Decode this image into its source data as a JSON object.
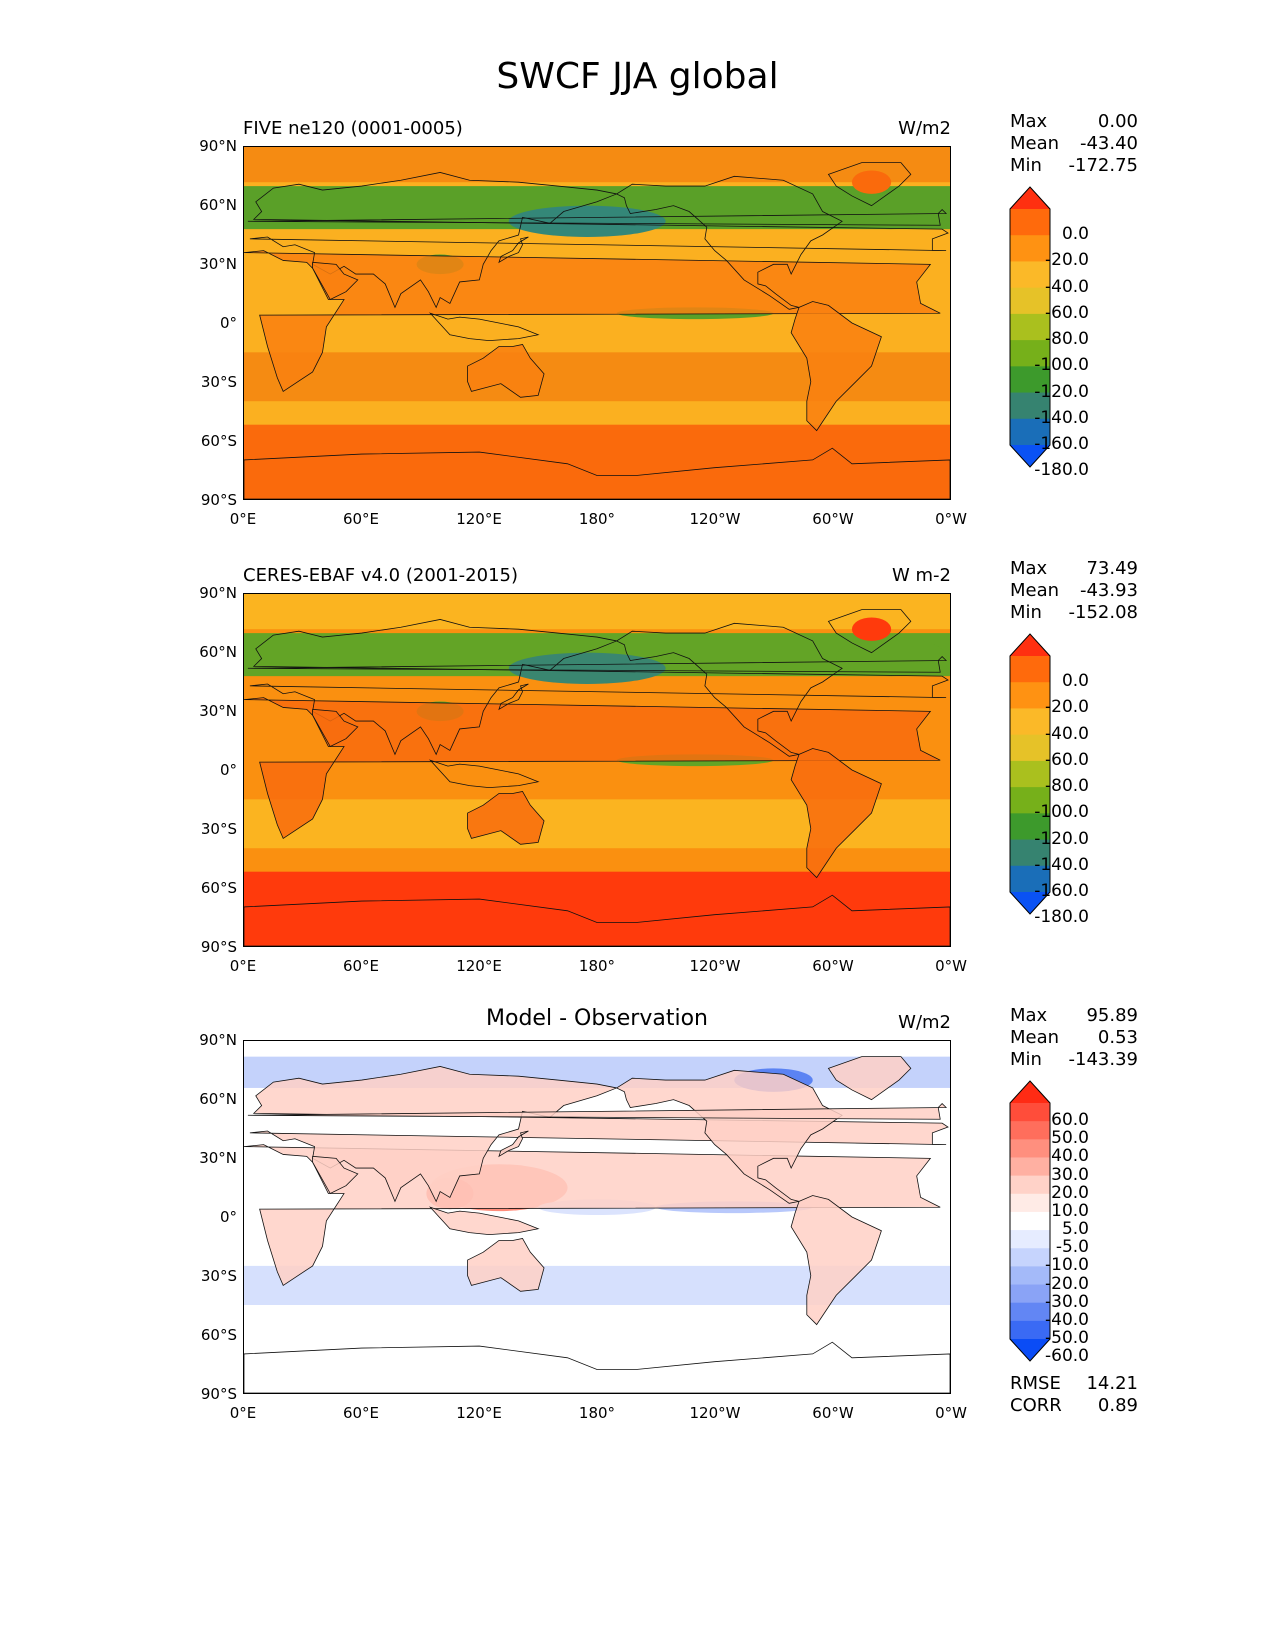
{
  "figure_title": "SWCF JJA global",
  "y_ticks": [
    "90°N",
    "60°N",
    "30°N",
    "0°",
    "30°S",
    "60°S",
    "90°S"
  ],
  "x_ticks": [
    "0°E",
    "60°E",
    "120°E",
    "180°",
    "120°W",
    "60°W",
    "0°W"
  ],
  "panels": [
    {
      "title": "FIVE ne120 (0001-0005)",
      "title_position": "left",
      "units": "W/m2",
      "stats": {
        "max_label": "Max",
        "max": "0.00",
        "mean_label": "Mean",
        "mean": "-43.40",
        "min_label": "Min",
        "min": "-172.75"
      },
      "colorbar": {
        "labels": [
          "0.0",
          "-20.0",
          "-40.0",
          "-60.0",
          "-80.0",
          "-100.0",
          "-120.0",
          "-140.0",
          "-160.0",
          "-180.0"
        ],
        "colors": [
          "#ff3010",
          "#ff6a0c",
          "#ff9212",
          "#fbb928",
          "#e6c228",
          "#aac01e",
          "#76b01a",
          "#3d9a2c",
          "#368370",
          "#1a6eb8",
          "#0a52f4"
        ]
      },
      "map_colors": {
        "ocean": "#fbb020",
        "polar": "#fa6a0c",
        "land": "#f98010",
        "nh_storm": "#5aa028",
        "storm_core": "#348778",
        "ocean_dark": "#f58b12"
      }
    },
    {
      "title": "CERES-EBAF v4.0 (2001-2015)",
      "title_position": "left",
      "units": "W m-2",
      "stats": {
        "max_label": "Max",
        "max": "73.49",
        "mean_label": "Mean",
        "mean": "-43.93",
        "min_label": "Min",
        "min": "-152.08"
      },
      "colorbar": {
        "labels": [
          "0.0",
          "-20.0",
          "-40.0",
          "-60.0",
          "-80.0",
          "-100.0",
          "-120.0",
          "-140.0",
          "-160.0",
          "-180.0"
        ],
        "colors": [
          "#ff3010",
          "#ff6a0c",
          "#ff9212",
          "#fbb928",
          "#e6c228",
          "#aac01e",
          "#76b01a",
          "#3d9a2c",
          "#368370",
          "#1a6eb8",
          "#0a52f4"
        ]
      },
      "map_colors": {
        "ocean": "#fa9010",
        "polar": "#ff3a0c",
        "land": "#f86c0e",
        "nh_storm": "#63a426",
        "storm_core": "#3a8670",
        "ocean_dark": "#fbb420"
      }
    },
    {
      "title": "Model - Observation",
      "title_position": "center",
      "units": "W/m2",
      "stats": {
        "max_label": "Max",
        "max": "95.89",
        "mean_label": "Mean",
        "mean": "0.53",
        "min_label": "Min",
        "min": "-143.39"
      },
      "colorbar": {
        "labels": [
          "60.0",
          "50.0",
          "40.0",
          "30.0",
          "20.0",
          "10.0",
          "5.0",
          "-5.0",
          "-10.0",
          "-20.0",
          "-30.0",
          "-40.0",
          "-50.0",
          "-60.0"
        ],
        "colors": [
          "#ff2b14",
          "#ff4d3a",
          "#ff6e5c",
          "#ff8f7e",
          "#ffb0a2",
          "#ffd2c8",
          "#ffebe6",
          "#ffffff",
          "#e6ecff",
          "#c6d4fd",
          "#a4baf9",
          "#8aa3f6",
          "#6286f4",
          "#3a6af4",
          "#0a4cf6"
        ]
      },
      "map_colors": {
        "ocean": "#ffffff",
        "polar": "#ffffff",
        "land": "#ffd0c6",
        "nh_storm": "#c4d2fb",
        "storm_core": "#ff6a56",
        "ocean_dark": "#d6e0fd"
      },
      "metrics": {
        "rmse_label": "RMSE",
        "rmse": "14.21",
        "corr_label": "CORR",
        "corr": "0.89"
      }
    }
  ]
}
